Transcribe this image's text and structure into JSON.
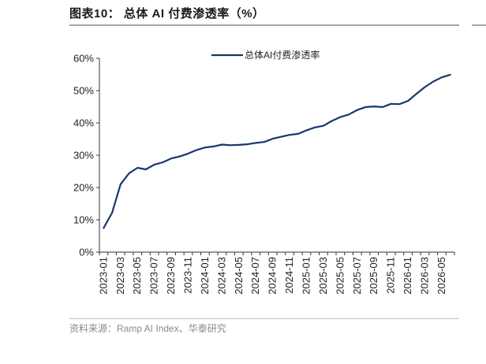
{
  "title": "图表10：  总体 AI 付费渗透率（%）",
  "source": "资料来源：Ramp AI Index、华泰研究",
  "chart_data": {
    "type": "line",
    "title": "",
    "xlabel": "",
    "ylabel": "",
    "ylim": [
      0,
      60
    ],
    "yticks": [
      "0%",
      "10%",
      "20%",
      "30%",
      "40%",
      "50%",
      "60%"
    ],
    "xtick_labels": [
      "2023-01",
      "2023-03",
      "2023-05",
      "2023-07",
      "2023-09",
      "2023-11",
      "2024-01",
      "2024-03",
      "2024-05",
      "2024-07",
      "2024-09",
      "2024-11",
      "2025-01",
      "2025-03",
      "2025-05",
      "2025-07",
      "2025-09",
      "2025-11",
      "2026-01",
      "2026-03",
      "2026-05"
    ],
    "legend": "top-center",
    "grid": false,
    "series": [
      {
        "name": "总体AI付费渗透率",
        "color": "#17386b",
        "x": [
          "2023-01",
          "2023-02",
          "2023-03",
          "2023-04",
          "2023-05",
          "2023-06",
          "2023-07",
          "2023-08",
          "2023-09",
          "2023-10",
          "2023-11",
          "2023-12",
          "2024-01",
          "2024-02",
          "2024-03",
          "2024-04",
          "2024-05",
          "2024-06",
          "2024-07",
          "2024-08",
          "2024-09",
          "2024-10",
          "2024-11",
          "2024-12",
          "2025-01",
          "2025-02",
          "2025-03",
          "2025-04",
          "2025-05",
          "2025-06",
          "2025-07",
          "2025-08",
          "2025-09",
          "2025-10",
          "2025-11",
          "2025-12",
          "2026-01",
          "2026-02",
          "2026-03",
          "2026-04",
          "2026-05",
          "2026-06"
        ],
        "values": [
          7.5,
          12.2,
          21.0,
          24.4,
          26.1,
          25.6,
          27.1,
          27.8,
          29.0,
          29.6,
          30.5,
          31.6,
          32.4,
          32.7,
          33.3,
          33.1,
          33.2,
          33.4,
          33.8,
          34.1,
          35.1,
          35.7,
          36.3,
          36.6,
          37.7,
          38.6,
          39.1,
          40.6,
          41.8,
          42.6,
          44.0,
          44.9,
          45.1,
          44.9,
          45.9,
          45.8,
          46.8,
          49.0,
          51.1,
          52.8,
          54.1,
          54.9
        ]
      }
    ]
  }
}
